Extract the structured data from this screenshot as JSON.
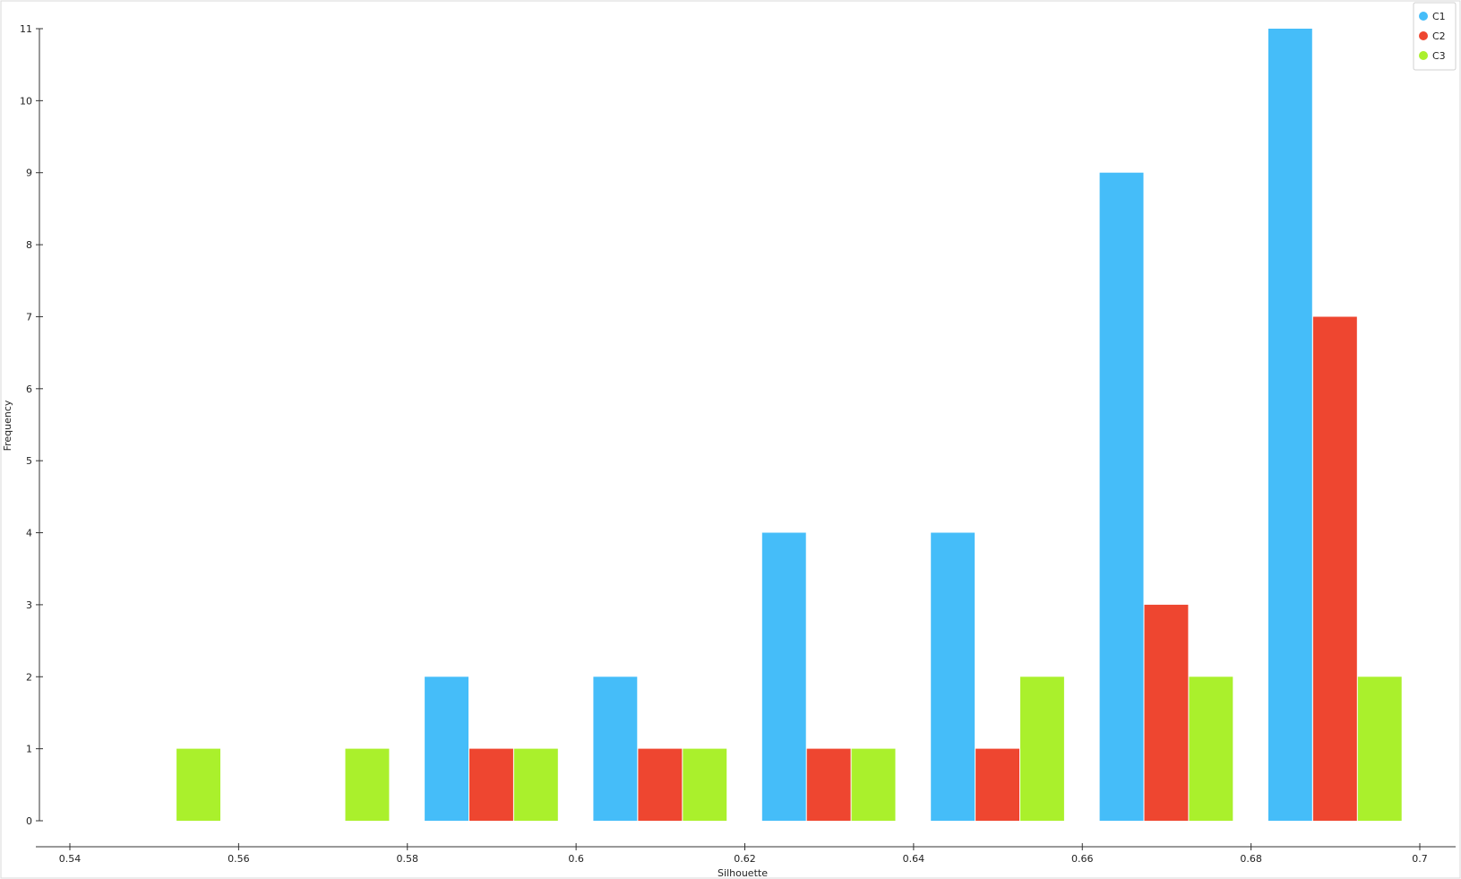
{
  "chart_data": {
    "type": "bar",
    "xlabel": "Silhouette",
    "ylabel": "Frequency",
    "xlim": [
      0.54,
      0.7
    ],
    "ylim": [
      0,
      11
    ],
    "xticks": [
      "0.54",
      "0.56",
      "0.58",
      "0.6",
      "0.62",
      "0.64",
      "0.66",
      "0.68",
      "0.7"
    ],
    "yticks": [
      "0",
      "1",
      "2",
      "3",
      "4",
      "5",
      "6",
      "7",
      "8",
      "9",
      "10",
      "11"
    ],
    "bin_width": 0.02,
    "bin_starts": [
      0.54,
      0.56,
      0.58,
      0.6,
      0.62,
      0.64,
      0.66,
      0.68
    ],
    "grid": false,
    "legend_position": "top-right",
    "series": [
      {
        "name": "C1",
        "color": "#45bdf9",
        "values": [
          0,
          0,
          2,
          2,
          4,
          4,
          9,
          11
        ]
      },
      {
        "name": "C2",
        "color": "#ee4630",
        "values": [
          0,
          0,
          1,
          1,
          1,
          1,
          3,
          7
        ]
      },
      {
        "name": "C3",
        "color": "#aaf02c",
        "values": [
          1,
          1,
          1,
          1,
          1,
          2,
          2,
          2
        ]
      }
    ]
  }
}
